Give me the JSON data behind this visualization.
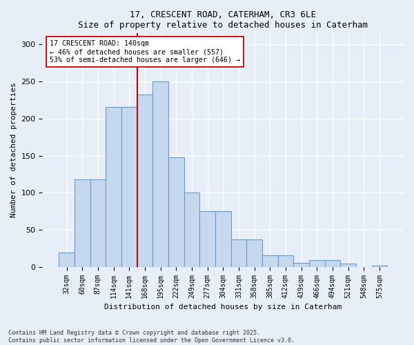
{
  "title1": "17, CRESCENT ROAD, CATERHAM, CR3 6LE",
  "title2": "Size of property relative to detached houses in Caterham",
  "xlabel": "Distribution of detached houses by size in Caterham",
  "ylabel": "Number of detached properties",
  "categories": [
    "32sqm",
    "60sqm",
    "87sqm",
    "114sqm",
    "141sqm",
    "168sqm",
    "195sqm",
    "222sqm",
    "249sqm",
    "277sqm",
    "304sqm",
    "331sqm",
    "358sqm",
    "385sqm",
    "412sqm",
    "439sqm",
    "466sqm",
    "494sqm",
    "521sqm",
    "548sqm",
    "575sqm"
  ],
  "values": [
    19,
    118,
    118,
    216,
    216,
    232,
    250,
    148,
    100,
    75,
    75,
    37,
    37,
    16,
    16,
    5,
    9,
    9,
    4,
    0,
    2
  ],
  "bar_color": "#c5d8ee",
  "bar_edge_color": "#6699cc",
  "bg_color": "#e8eef8",
  "annotation_text": "17 CRESCENT ROAD: 140sqm\n← 46% of detached houses are smaller (557)\n53% of semi-detached houses are larger (646) →",
  "vline_x": 4.5,
  "vline_color": "#cc0000",
  "annotation_box_color": "#ffffff",
  "annotation_box_edge": "#cc0000",
  "ylim": [
    0,
    315
  ],
  "yticks": [
    0,
    50,
    100,
    150,
    200,
    250,
    300
  ],
  "footer1": "Contains HM Land Registry data © Crown copyright and database right 2025.",
  "footer2": "Contains public sector information licensed under the Open Government Licence v3.0."
}
